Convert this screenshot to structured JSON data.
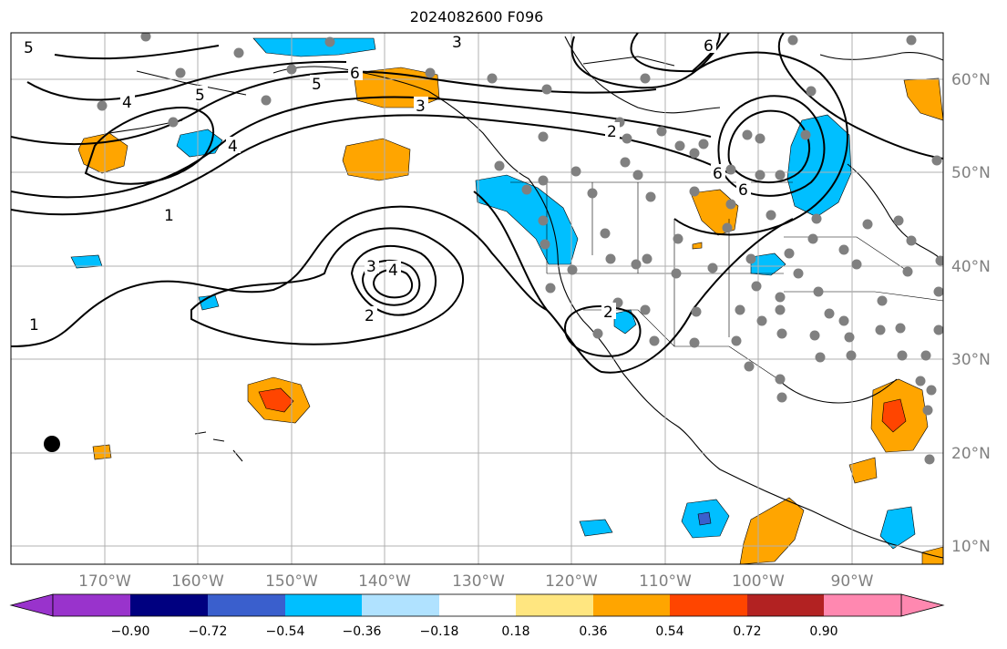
{
  "title": "2024082600 F096",
  "map": {
    "lon_ticks": [
      "170°W",
      "160°W",
      "150°W",
      "140°W",
      "130°W",
      "120°W",
      "110°W",
      "100°W",
      "90°W"
    ],
    "lat_ticks": [
      "60°N",
      "50°N",
      "40°N",
      "30°N",
      "20°N",
      "10°N"
    ],
    "contour_labels": [
      "1",
      "1",
      "2",
      "2",
      "2",
      "3",
      "3",
      "3",
      "4",
      "4",
      "4",
      "5",
      "5",
      "5",
      "6",
      "6",
      "6",
      "6"
    ]
  },
  "colorbar": {
    "ticks": [
      "−0.90",
      "−0.72",
      "−0.54",
      "−0.36",
      "−0.18",
      "0.18",
      "0.36",
      "0.54",
      "0.72",
      "0.90"
    ],
    "colors": [
      "#9933cc",
      "#000080",
      "#3a5fcd",
      "#00bfff",
      "#b0e2ff",
      "#ffffff",
      "#ffe680",
      "#ffa500",
      "#ff4500",
      "#b22222",
      "#ff88b0"
    ]
  }
}
